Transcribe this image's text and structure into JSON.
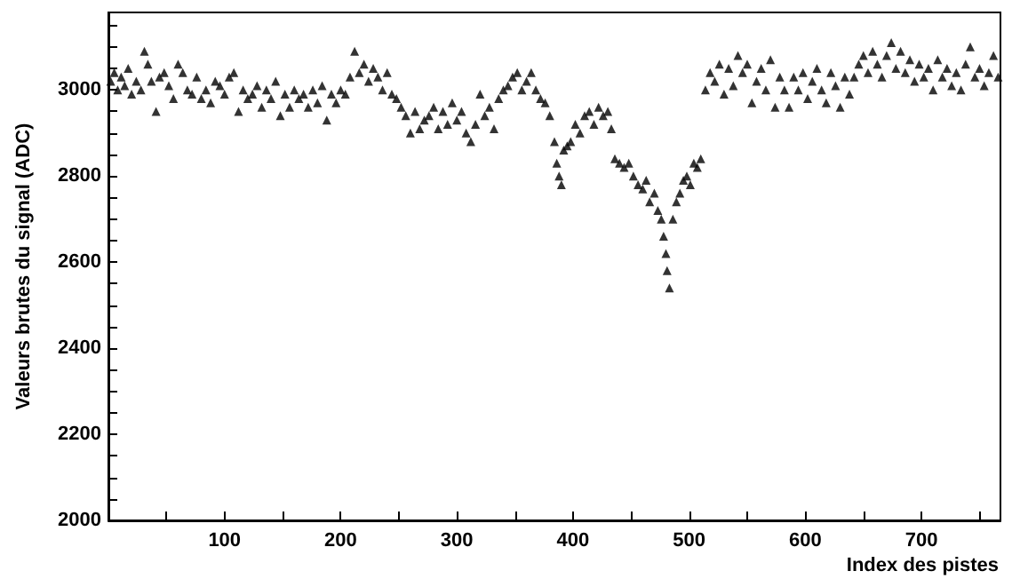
{
  "chart_data": {
    "type": "scatter",
    "xlabel": "Index des pistes",
    "ylabel": "Valeurs brutes du signal (ADC)",
    "xlim": [
      0,
      768
    ],
    "ylim": [
      2000,
      3180
    ],
    "xticks": [
      {
        "value": 50,
        "label": null
      },
      100,
      {
        "value": 150,
        "label": null
      },
      200,
      {
        "value": 250,
        "label": null
      },
      300,
      {
        "value": 350,
        "label": null
      },
      400,
      {
        "value": 450,
        "label": null
      },
      500,
      {
        "value": 550,
        "label": null
      },
      600,
      {
        "value": 650,
        "label": null
      },
      700,
      {
        "value": 750,
        "label": null
      }
    ],
    "yticks": [
      2000,
      {
        "value": 2050,
        "label": null
      },
      {
        "value": 2100,
        "label": null
      },
      {
        "value": 2150,
        "label": null
      },
      2200,
      {
        "value": 2250,
        "label": null
      },
      {
        "value": 2300,
        "label": null
      },
      {
        "value": 2350,
        "label": null
      },
      2400,
      {
        "value": 2450,
        "label": null
      },
      {
        "value": 2500,
        "label": null
      },
      {
        "value": 2550,
        "label": null
      },
      2600,
      {
        "value": 2650,
        "label": null
      },
      {
        "value": 2700,
        "label": null
      },
      {
        "value": 2750,
        "label": null
      },
      2800,
      {
        "value": 2850,
        "label": null
      },
      {
        "value": 2900,
        "label": null
      },
      {
        "value": 2950,
        "label": null
      },
      3000,
      {
        "value": 3050,
        "label": null
      },
      {
        "value": 3100,
        "label": null
      },
      {
        "value": 3150,
        "label": null
      }
    ],
    "grid": false,
    "marker": "triangle",
    "color": "#000000",
    "x": [
      2,
      5,
      8,
      11,
      14,
      17,
      20,
      24,
      28,
      31,
      34,
      37,
      41,
      44,
      48,
      52,
      56,
      60,
      64,
      68,
      72,
      76,
      80,
      84,
      88,
      92,
      96,
      100,
      104,
      108,
      112,
      116,
      120,
      124,
      128,
      132,
      136,
      140,
      144,
      148,
      152,
      156,
      160,
      164,
      168,
      172,
      176,
      180,
      184,
      188,
      192,
      196,
      200,
      204,
      208,
      212,
      216,
      220,
      224,
      228,
      232,
      236,
      240,
      244,
      248,
      252,
      256,
      260,
      264,
      268,
      272,
      276,
      280,
      284,
      288,
      292,
      296,
      300,
      304,
      308,
      312,
      316,
      320,
      324,
      328,
      332,
      336,
      340,
      344,
      348,
      352,
      356,
      360,
      364,
      368,
      372,
      376,
      380,
      384,
      386,
      388,
      390,
      392,
      395,
      398,
      402,
      406,
      410,
      414,
      418,
      422,
      426,
      430,
      433,
      436,
      440,
      444,
      448,
      452,
      456,
      460,
      463,
      466,
      470,
      473,
      476,
      478,
      480,
      481,
      483,
      486,
      489,
      492,
      495,
      498,
      501,
      504,
      507,
      510,
      514,
      518,
      522,
      526,
      530,
      534,
      538,
      542,
      546,
      550,
      554,
      558,
      562,
      566,
      570,
      574,
      578,
      582,
      586,
      590,
      594,
      598,
      602,
      606,
      610,
      614,
      618,
      622,
      626,
      630,
      634,
      638,
      642,
      646,
      650,
      654,
      658,
      662,
      666,
      670,
      674,
      678,
      682,
      686,
      690,
      694,
      698,
      702,
      706,
      710,
      714,
      718,
      722,
      726,
      730,
      734,
      738,
      742,
      746,
      750,
      754,
      758,
      762,
      766
    ],
    "values": [
      3020,
      3040,
      3000,
      3030,
      3010,
      3050,
      2990,
      3020,
      3000,
      3090,
      3060,
      3020,
      2950,
      3030,
      3040,
      3010,
      2980,
      3060,
      3040,
      3000,
      2990,
      3030,
      2980,
      3000,
      2970,
      3020,
      3010,
      2990,
      3030,
      3040,
      2950,
      3000,
      2980,
      2990,
      3010,
      2960,
      3000,
      2980,
      3020,
      2940,
      2990,
      2960,
      3000,
      2980,
      2990,
      2960,
      3000,
      2970,
      3010,
      2930,
      2990,
      2970,
      3000,
      2990,
      3030,
      3090,
      3040,
      3060,
      3020,
      3050,
      3030,
      3000,
      3040,
      2990,
      2980,
      2960,
      2940,
      2900,
      2950,
      2910,
      2930,
      2940,
      2960,
      2910,
      2950,
      2920,
      2970,
      2930,
      2950,
      2900,
      2880,
      2920,
      2990,
      2940,
      2960,
      2910,
      2980,
      3000,
      3010,
      3030,
      3040,
      3000,
      3020,
      3040,
      3000,
      2980,
      2970,
      2940,
      2880,
      2830,
      2800,
      2780,
      2860,
      2870,
      2880,
      2920,
      2900,
      2940,
      2950,
      2920,
      2960,
      2940,
      2950,
      2910,
      2840,
      2830,
      2820,
      2830,
      2800,
      2780,
      2770,
      2790,
      2740,
      2760,
      2720,
      2700,
      2660,
      2620,
      2580,
      2540,
      2700,
      2740,
      2760,
      2790,
      2800,
      2780,
      2830,
      2820,
      2840,
      3000,
      3040,
      3020,
      3060,
      2990,
      3050,
      3010,
      3080,
      3040,
      3060,
      2970,
      3020,
      3050,
      3000,
      3070,
      2960,
      3030,
      3000,
      2960,
      3030,
      3000,
      3040,
      2980,
      3020,
      3050,
      3000,
      2970,
      3040,
      3010,
      2960,
      3030,
      2990,
      3030,
      3060,
      3080,
      3040,
      3090,
      3060,
      3030,
      3080,
      3110,
      3050,
      3090,
      3040,
      3070,
      3020,
      3060,
      3030,
      3050,
      3000,
      3070,
      3030,
      3050,
      3010,
      3040,
      3000,
      3060,
      3100,
      3030,
      3050,
      3010,
      3040,
      3080,
      3030
    ]
  }
}
